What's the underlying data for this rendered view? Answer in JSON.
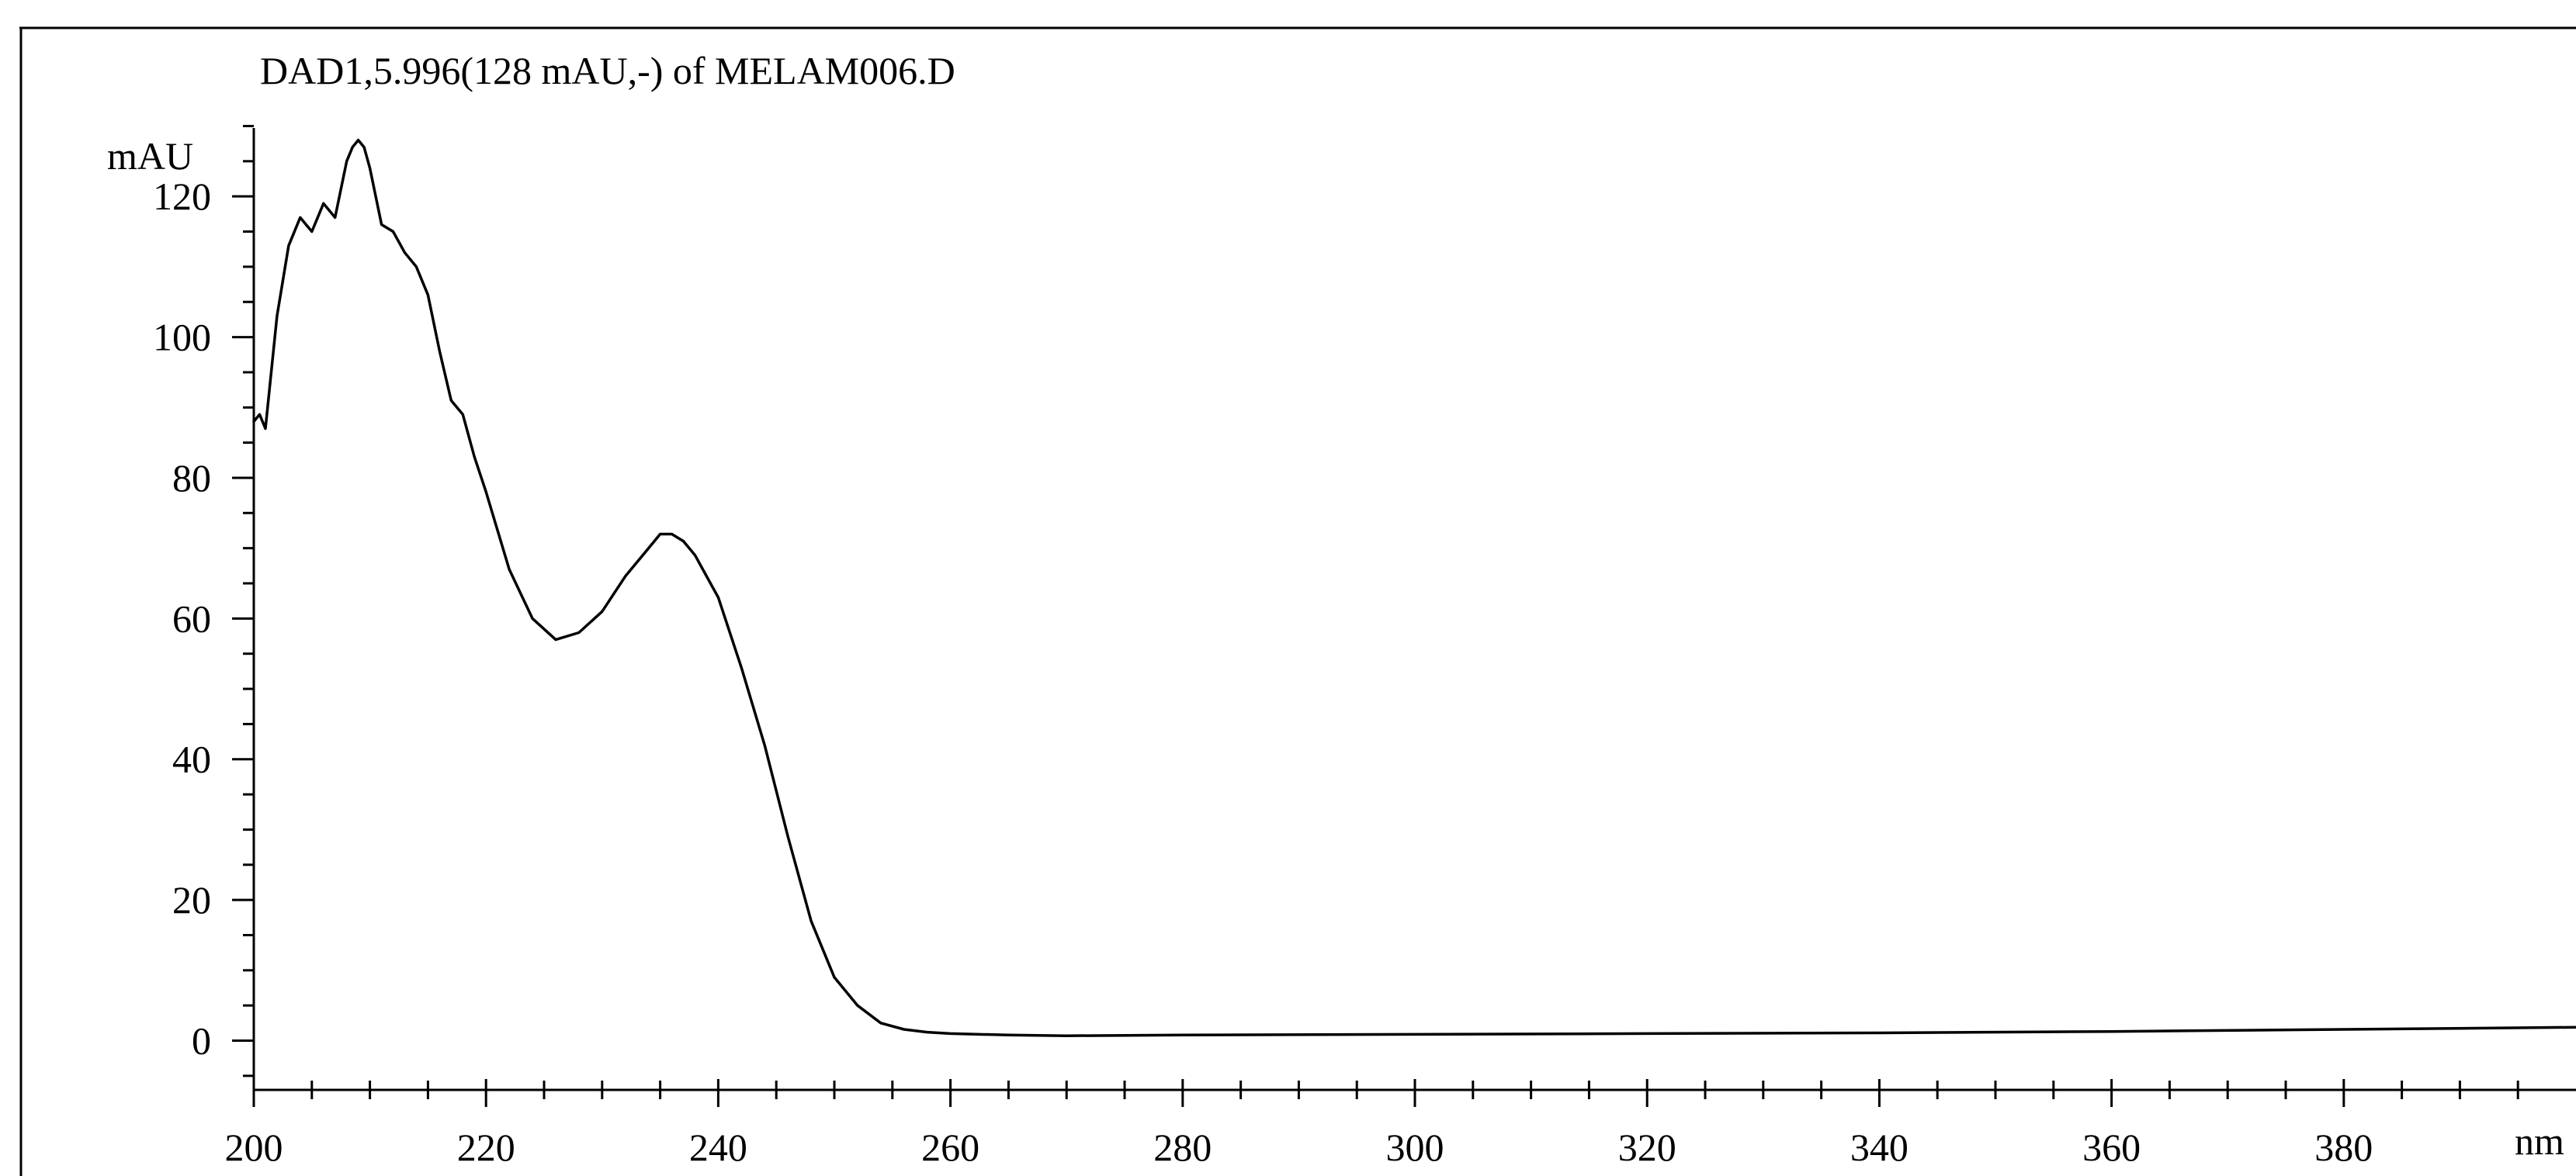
{
  "chart_data": {
    "type": "line",
    "title": "DAD1,5.996(128 mAU,-) of MELAM006.D",
    "ylabel": "mAU",
    "xlabel": "nm",
    "xlim": [
      200,
      400
    ],
    "ylim": [
      -7,
      137
    ],
    "grid": false,
    "x_ticks": [
      200,
      220,
      240,
      260,
      280,
      300,
      320,
      340,
      360,
      380
    ],
    "y_ticks": [
      0,
      20,
      40,
      60,
      80,
      100,
      120
    ],
    "series": [
      {
        "color": "#000000",
        "x": [
          200,
          200.5,
          201,
          202,
          203,
          204,
          204.5,
          205,
          206,
          207,
          208,
          208.5,
          209,
          209.5,
          210,
          211,
          212,
          213,
          214,
          215,
          216,
          217,
          218,
          219,
          220,
          222,
          224,
          226,
          228,
          230,
          232,
          234,
          235,
          236,
          237,
          238,
          239,
          240,
          242,
          244,
          246,
          248,
          250,
          252,
          254,
          256,
          258,
          260,
          265,
          270,
          280,
          300,
          320,
          340,
          360,
          380,
          400
        ],
        "y": [
          88,
          89,
          87,
          103,
          113,
          117,
          116,
          115,
          119,
          117,
          125,
          127,
          128,
          127,
          124,
          116,
          115,
          112,
          110,
          106,
          98,
          91,
          89,
          83,
          78,
          67,
          60,
          57,
          58,
          61,
          66,
          70,
          72,
          72,
          71,
          69,
          66,
          63,
          53,
          42,
          29,
          17,
          9,
          5,
          2.5,
          1.6,
          1.2,
          1.0,
          0.8,
          0.7,
          0.8,
          0.9,
          1.0,
          1.1,
          1.3,
          1.6,
          1.9
        ]
      }
    ]
  }
}
